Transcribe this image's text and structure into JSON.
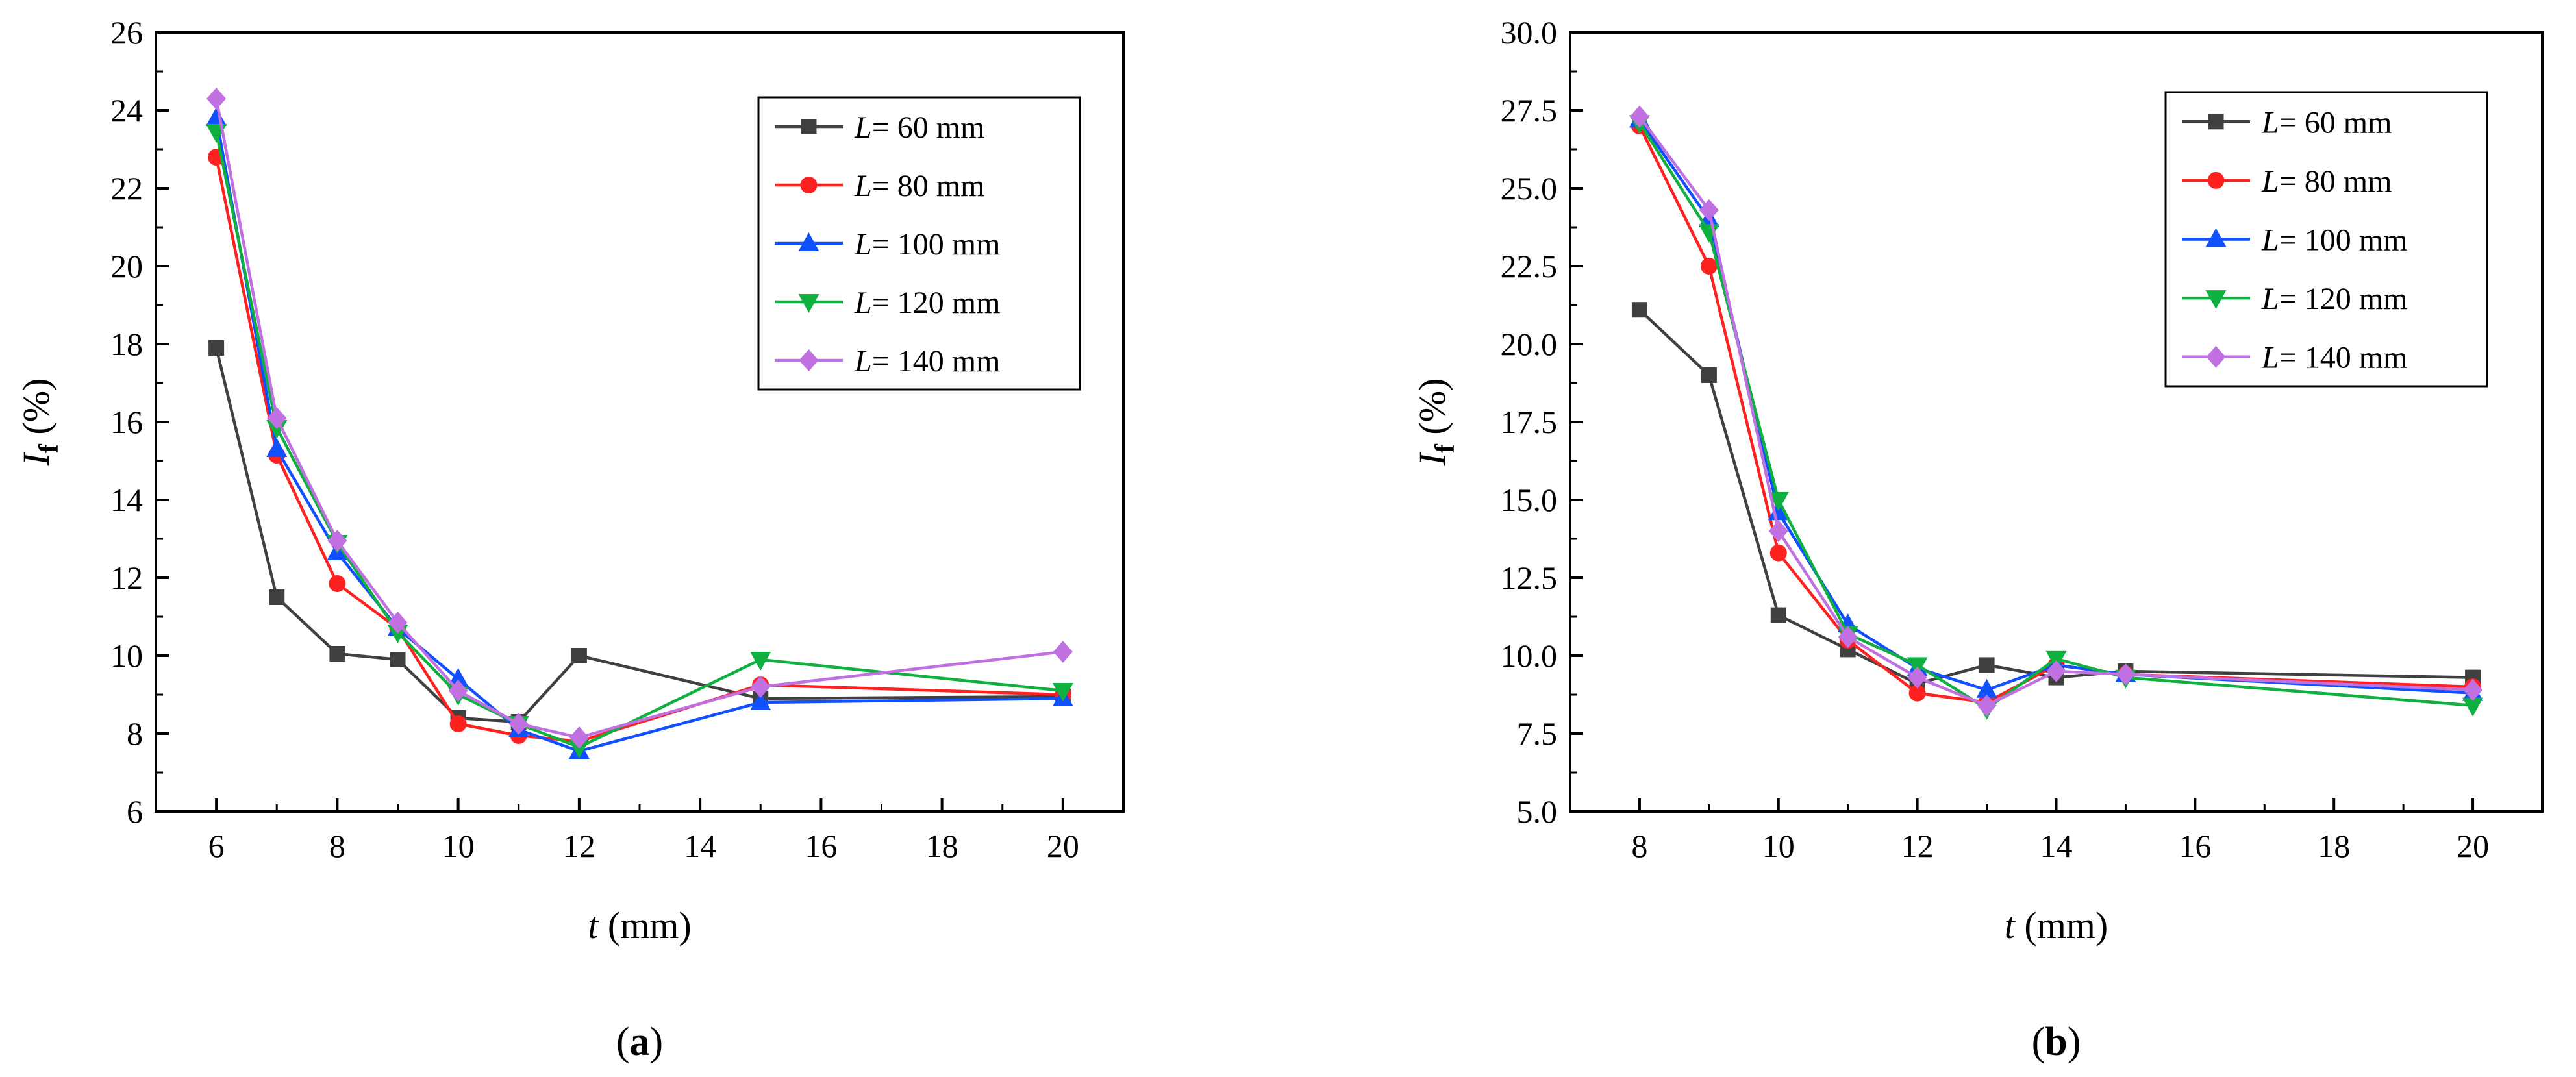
{
  "chart_data": [
    {
      "type": "line",
      "panel_label": "a",
      "panel_label_open": "(",
      "panel_label_close": ")",
      "xlabel_symbol": "t",
      "xlabel_unit": " (mm)",
      "ylabel_symbol": "I",
      "ylabel_subscript": "f",
      "ylabel_unit": " (%)",
      "xlim": [
        5,
        21
      ],
      "ylim": [
        6,
        26
      ],
      "xticks": [
        6,
        8,
        10,
        12,
        14,
        16,
        18,
        20
      ],
      "yticks": [
        6,
        8,
        10,
        12,
        14,
        16,
        18,
        20,
        22,
        24,
        26
      ],
      "ytick_decimals": 0,
      "legend_position": "top-right",
      "legend_prefix": "L",
      "x": [
        6,
        7,
        8,
        9,
        10,
        11,
        12,
        15,
        20
      ],
      "series": [
        {
          "name": "= 60 mm",
          "color": "#404040",
          "marker": "square",
          "values": [
            17.9,
            11.5,
            10.05,
            9.9,
            8.4,
            8.3,
            10.0,
            8.9,
            8.95
          ]
        },
        {
          "name": "= 80 mm",
          "color": "#ff2020",
          "marker": "circle",
          "values": [
            22.8,
            15.15,
            11.85,
            10.7,
            8.25,
            7.95,
            7.8,
            9.25,
            9.0
          ]
        },
        {
          "name": "= 100 mm",
          "color": "#1050ff",
          "marker": "triangle-up",
          "values": [
            23.8,
            15.3,
            12.65,
            10.7,
            9.4,
            8.1,
            7.55,
            8.8,
            8.9
          ]
        },
        {
          "name": "= 120 mm",
          "color": "#10b040",
          "marker": "triangle-down",
          "values": [
            23.45,
            15.85,
            12.9,
            10.6,
            9.0,
            8.25,
            7.65,
            9.9,
            9.1
          ]
        },
        {
          "name": "= 140 mm",
          "color": "#c070e0",
          "marker": "diamond",
          "values": [
            24.3,
            16.1,
            12.95,
            10.85,
            9.1,
            8.25,
            7.9,
            9.2,
            10.1
          ]
        }
      ]
    },
    {
      "type": "line",
      "panel_label": "b",
      "panel_label_open": "(",
      "panel_label_close": ")",
      "xlabel_symbol": "t",
      "xlabel_unit": " (mm)",
      "ylabel_symbol": "I",
      "ylabel_subscript": "f",
      "ylabel_unit": " (%)",
      "xlim": [
        7,
        21
      ],
      "ylim": [
        5,
        30
      ],
      "xticks": [
        8,
        10,
        12,
        14,
        16,
        18,
        20
      ],
      "yticks": [
        5,
        7.5,
        10,
        12.5,
        15,
        17.5,
        20,
        22.5,
        25,
        27.5,
        30
      ],
      "ytick_decimals": 1,
      "legend_position": "top-right",
      "legend_prefix": "L",
      "x": [
        8,
        9,
        10,
        11,
        12,
        13,
        14,
        15,
        20
      ],
      "series": [
        {
          "name": "= 60 mm",
          "color": "#404040",
          "marker": "square",
          "values": [
            21.1,
            19.0,
            11.3,
            10.2,
            9.1,
            9.7,
            9.3,
            9.5,
            9.3
          ]
        },
        {
          "name": "= 80 mm",
          "color": "#ff2020",
          "marker": "circle",
          "values": [
            27.0,
            22.5,
            13.3,
            10.5,
            8.8,
            8.5,
            9.7,
            9.4,
            9.0
          ]
        },
        {
          "name": "= 100 mm",
          "color": "#1050ff",
          "marker": "triangle-up",
          "values": [
            27.2,
            24.0,
            14.6,
            11.0,
            9.6,
            8.9,
            9.7,
            9.4,
            8.8
          ]
        },
        {
          "name": "= 120 mm",
          "color": "#10b040",
          "marker": "triangle-down",
          "values": [
            27.1,
            23.6,
            15.0,
            10.7,
            9.7,
            8.3,
            9.9,
            9.3,
            8.4
          ]
        },
        {
          "name": "= 140 mm",
          "color": "#c070e0",
          "marker": "diamond",
          "values": [
            27.3,
            24.3,
            14.0,
            10.6,
            9.3,
            8.4,
            9.5,
            9.4,
            8.9
          ]
        }
      ]
    }
  ]
}
